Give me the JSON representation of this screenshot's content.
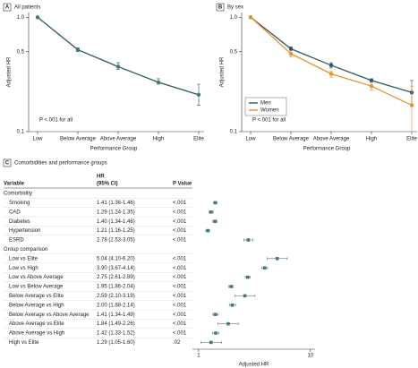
{
  "chart_data": [
    {
      "type": "line",
      "label": "A",
      "title": "All patients",
      "ylabel": "Adjusted HR",
      "xlabel": "Performance Group",
      "annotation": "P <.001 for all",
      "categories": [
        "Low",
        "Below Average",
        "Above Average",
        "High",
        "Elite"
      ],
      "log_y": true,
      "ylim": [
        0.1,
        1.1
      ],
      "yticks": [
        {
          "value": 1,
          "label": "1.0"
        },
        0.5,
        0.1
      ],
      "series": [
        {
          "color": "#2b5a5f",
          "marker_color": "#3d7d74",
          "values": [
            1.0,
            0.52,
            0.37,
            0.27,
            0.21
          ],
          "lower": [
            1.0,
            0.5,
            0.35,
            0.26,
            0.17
          ],
          "upper": [
            1.0,
            0.54,
            0.4,
            0.29,
            0.26
          ]
        }
      ]
    },
    {
      "type": "line",
      "label": "B",
      "title": "By sex",
      "ylabel": "Adjusted HR",
      "xlabel": "Performance Group",
      "annotation": "P <.001 for all",
      "categories": [
        "Low",
        "Below Average",
        "Above Average",
        "High",
        "Elite"
      ],
      "log_y": true,
      "ylim": [
        0.1,
        1.1
      ],
      "yticks": [
        {
          "value": 1,
          "label": "1.0"
        },
        0.5,
        0.1
      ],
      "legend": "lower left",
      "series": [
        {
          "name": "Men",
          "color": "#2b5a5f",
          "marker_color": "#2b5a5f",
          "values": [
            1.0,
            0.53,
            0.38,
            0.28,
            0.22
          ],
          "lower": [
            1.0,
            0.51,
            0.36,
            0.27,
            0.17
          ],
          "upper": [
            1.0,
            0.55,
            0.4,
            0.29,
            0.28
          ]
        },
        {
          "name": "Women",
          "color": "#e8922e",
          "marker_color": "#e8922e",
          "values": [
            1.0,
            0.48,
            0.32,
            0.25,
            0.17
          ],
          "lower": [
            1.0,
            0.45,
            0.3,
            0.23,
            0.1
          ],
          "upper": [
            1.0,
            0.51,
            0.34,
            0.27,
            0.25
          ]
        }
      ]
    },
    {
      "type": "forest",
      "label": "C",
      "title": "Comorbidities and performance groups",
      "columns": [
        "Variable",
        [
          "HR",
          "(95% CI)"
        ],
        "P Value"
      ],
      "xlabel": "Adjusted HR",
      "log_x": true,
      "xlim": [
        0.88,
        11
      ],
      "xticks": [
        1,
        10
      ],
      "color": "#3d7d74",
      "groups": [
        {
          "name": "Comorbidity",
          "rows": [
            {
              "variable": "Smoking",
              "hr_ci": "1.41 (1.36-1.46)",
              "p": "<.001",
              "value": 1.41,
              "lower": 1.36,
              "upper": 1.46
            },
            {
              "variable": "CAD",
              "hr_ci": "1.29 (1.24-1.35)",
              "p": "<.001",
              "value": 1.29,
              "lower": 1.24,
              "upper": 1.35
            },
            {
              "variable": "Diabetes",
              "hr_ci": "1.40 (1.34-1.46)",
              "p": "<.001",
              "value": 1.4,
              "lower": 1.34,
              "upper": 1.46
            },
            {
              "variable": "Hypertension",
              "hr_ci": "1.21 (1.16-1.25)",
              "p": "<.001",
              "value": 1.21,
              "lower": 1.16,
              "upper": 1.25
            },
            {
              "variable": "ESRD",
              "hr_ci": "2.78 (2.53-3.05)",
              "p": "<.001",
              "value": 2.78,
              "lower": 2.53,
              "upper": 3.05
            }
          ]
        },
        {
          "name": "Group comparison",
          "rows": [
            {
              "variable": "Low vs Elite",
              "hr_ci": "5.04 (4.10-6.20)",
              "p": "<.001",
              "value": 5.04,
              "lower": 4.1,
              "upper": 6.2
            },
            {
              "variable": "Low vs High",
              "hr_ci": "3.90 (3.67-4.14)",
              "p": "<.001",
              "value": 3.9,
              "lower": 3.67,
              "upper": 4.14
            },
            {
              "variable": "Low vs Above Average",
              "hr_ci": "2.75 (2.61-2.89)",
              "p": "<.001",
              "value": 2.75,
              "lower": 2.61,
              "upper": 2.89
            },
            {
              "variable": "Low vs Below Average",
              "hr_ci": "1.95 (1.86-2.04)",
              "p": "<.001",
              "value": 1.95,
              "lower": 1.86,
              "upper": 2.04
            },
            {
              "variable": "Below Average vs Elite",
              "hr_ci": "2.59 (2.10-3.19)",
              "p": "<.001",
              "value": 2.59,
              "lower": 2.1,
              "upper": 3.19
            },
            {
              "variable": "Below Average vs High",
              "hr_ci": "2.00 (1.88-2.14)",
              "p": "<.001",
              "value": 2.0,
              "lower": 1.88,
              "upper": 2.14
            },
            {
              "variable": "Below Average vs Above Average",
              "hr_ci": "1.41 (1.34-1.49)",
              "p": "<.001",
              "value": 1.41,
              "lower": 1.34,
              "upper": 1.49
            },
            {
              "variable": "Above Average vs Elite",
              "hr_ci": "1.84 (1.49-2.26)",
              "p": "<.001",
              "value": 1.84,
              "lower": 1.49,
              "upper": 2.26
            },
            {
              "variable": "Above Average vs High",
              "hr_ci": "1.42 (1.33-1.52)",
              "p": "<.001",
              "value": 1.42,
              "lower": 1.33,
              "upper": 1.52
            },
            {
              "variable": "High vs Elite",
              "hr_ci": "1.29 (1.05-1.60)",
              "p": ".02",
              "value": 1.29,
              "lower": 1.05,
              "upper": 1.6
            }
          ]
        }
      ]
    }
  ]
}
